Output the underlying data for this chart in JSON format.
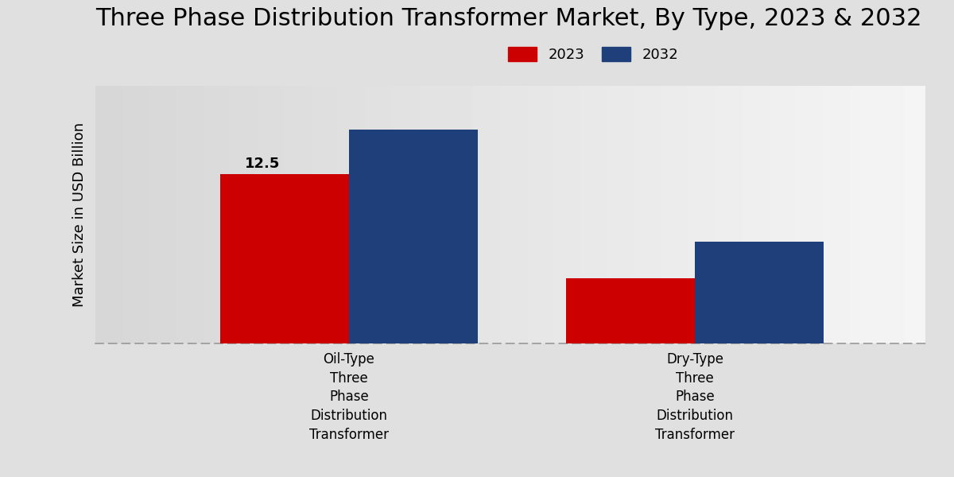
{
  "title": "Three Phase Distribution Transformer Market, By Type, 2023 & 2032",
  "ylabel": "Market Size in USD Billion",
  "categories": [
    "Oil-Type\nThree\nPhase\nDistribution\nTransformer",
    "Dry-Type\nThree\nPhase\nDistribution\nTransformer"
  ],
  "values_2023": [
    12.5,
    4.8
  ],
  "values_2032": [
    15.8,
    7.5
  ],
  "bar_color_2023": "#cc0000",
  "bar_color_2032": "#1e3f7a",
  "annotation_2023_oil": "12.5",
  "legend_labels": [
    "2023",
    "2032"
  ],
  "bg_color_left": "#d8d8d8",
  "bg_color_right": "#f0f0f0",
  "title_fontsize": 22,
  "label_fontsize": 13,
  "tick_fontsize": 12,
  "annotation_fontsize": 13,
  "bar_width": 0.28,
  "ylim": [
    0,
    19
  ],
  "x_positions": [
    0.25,
    1.0
  ]
}
